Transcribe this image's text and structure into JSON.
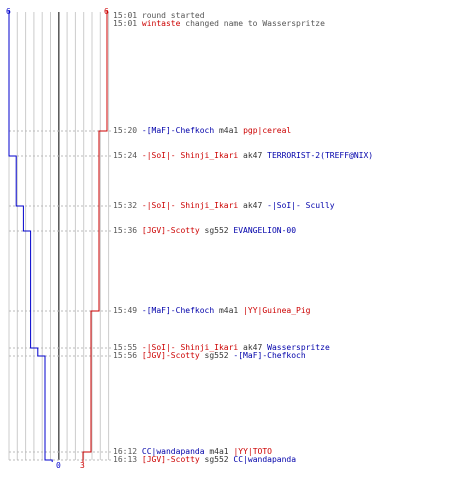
{
  "colors": {
    "red_team": "#cc0000",
    "blue_team": "#0000cc",
    "grid": "#cccccc",
    "axis": "#555555"
  },
  "score_labels": {
    "blue_top": "6",
    "red_top": "6",
    "blue_bottom": "0",
    "red_bottom": "3"
  },
  "events": [
    {
      "time": "15:01",
      "parts": [
        {
          "t": "round started",
          "c": "muted"
        }
      ]
    },
    {
      "time": "15:01",
      "parts": [
        {
          "t": "wintaste",
          "c": "red"
        },
        {
          "t": " changed name to Wasserspritze",
          "c": "muted"
        }
      ]
    },
    {
      "time": "15:20",
      "parts": [
        {
          "t": "-[MaF]-Chefkoch",
          "c": "blue"
        },
        {
          "t": " m4a1 ",
          "c": "dark"
        },
        {
          "t": "pgp|cereal",
          "c": "red"
        }
      ]
    },
    {
      "time": "15:24",
      "parts": [
        {
          "t": "-|SoI|- Shinji_Ikari",
          "c": "red"
        },
        {
          "t": " ak47 ",
          "c": "dark"
        },
        {
          "t": "TERRORIST-2(TREFF@NIX)",
          "c": "blue"
        }
      ]
    },
    {
      "time": "15:32",
      "parts": [
        {
          "t": "-|SoI|- Shinji_Ikari",
          "c": "red"
        },
        {
          "t": " ak47 ",
          "c": "dark"
        },
        {
          "t": "-|SoI|- Scully",
          "c": "blue"
        }
      ]
    },
    {
      "time": "15:36",
      "parts": [
        {
          "t": "[JGV]-Scotty",
          "c": "red"
        },
        {
          "t": " sg552 ",
          "c": "dark"
        },
        {
          "t": "EVANGELION-00",
          "c": "blue"
        }
      ]
    },
    {
      "time": "15:49",
      "parts": [
        {
          "t": "-[MaF]-Chefkoch",
          "c": "blue"
        },
        {
          "t": " m4a1 ",
          "c": "dark"
        },
        {
          "t": "|YY|Guinea_Pig",
          "c": "red"
        }
      ]
    },
    {
      "time": "15:55",
      "parts": [
        {
          "t": "-|SoI|- Shinji_Ikari",
          "c": "red"
        },
        {
          "t": " ak47 ",
          "c": "dark"
        },
        {
          "t": "Wasserspritze",
          "c": "blue"
        }
      ]
    },
    {
      "time": "15:56",
      "parts": [
        {
          "t": "[JGV]-Scotty",
          "c": "red"
        },
        {
          "t": " sg552 ",
          "c": "dark"
        },
        {
          "t": "-[MaF]-Chefkoch",
          "c": "blue"
        }
      ]
    },
    {
      "time": "16:12",
      "parts": [
        {
          "t": "CC|wandapanda",
          "c": "blue"
        },
        {
          "t": " m4a1 ",
          "c": "dark"
        },
        {
          "t": "|YY|TOTO",
          "c": "red"
        }
      ]
    },
    {
      "time": "16:13",
      "parts": [
        {
          "t": "[JGV]-Scotty",
          "c": "red"
        },
        {
          "t": " sg552 ",
          "c": "dark"
        },
        {
          "t": "CC|wandapanda",
          "c": "blue"
        }
      ]
    }
  ],
  "chart_data": {
    "type": "line",
    "x_time": [
      "15:01",
      "15:20",
      "15:24",
      "15:32",
      "15:36",
      "15:49",
      "15:55",
      "15:56",
      "16:12",
      "16:13"
    ],
    "ylim": [
      0,
      6
    ],
    "series": [
      {
        "team": "blue",
        "values": [
          6,
          6,
          5,
          4,
          3,
          3,
          2,
          1,
          1,
          0
        ]
      },
      {
        "team": "red",
        "values": [
          6,
          5,
          5,
          5,
          5,
          4,
          4,
          4,
          3,
          3
        ]
      }
    ]
  }
}
